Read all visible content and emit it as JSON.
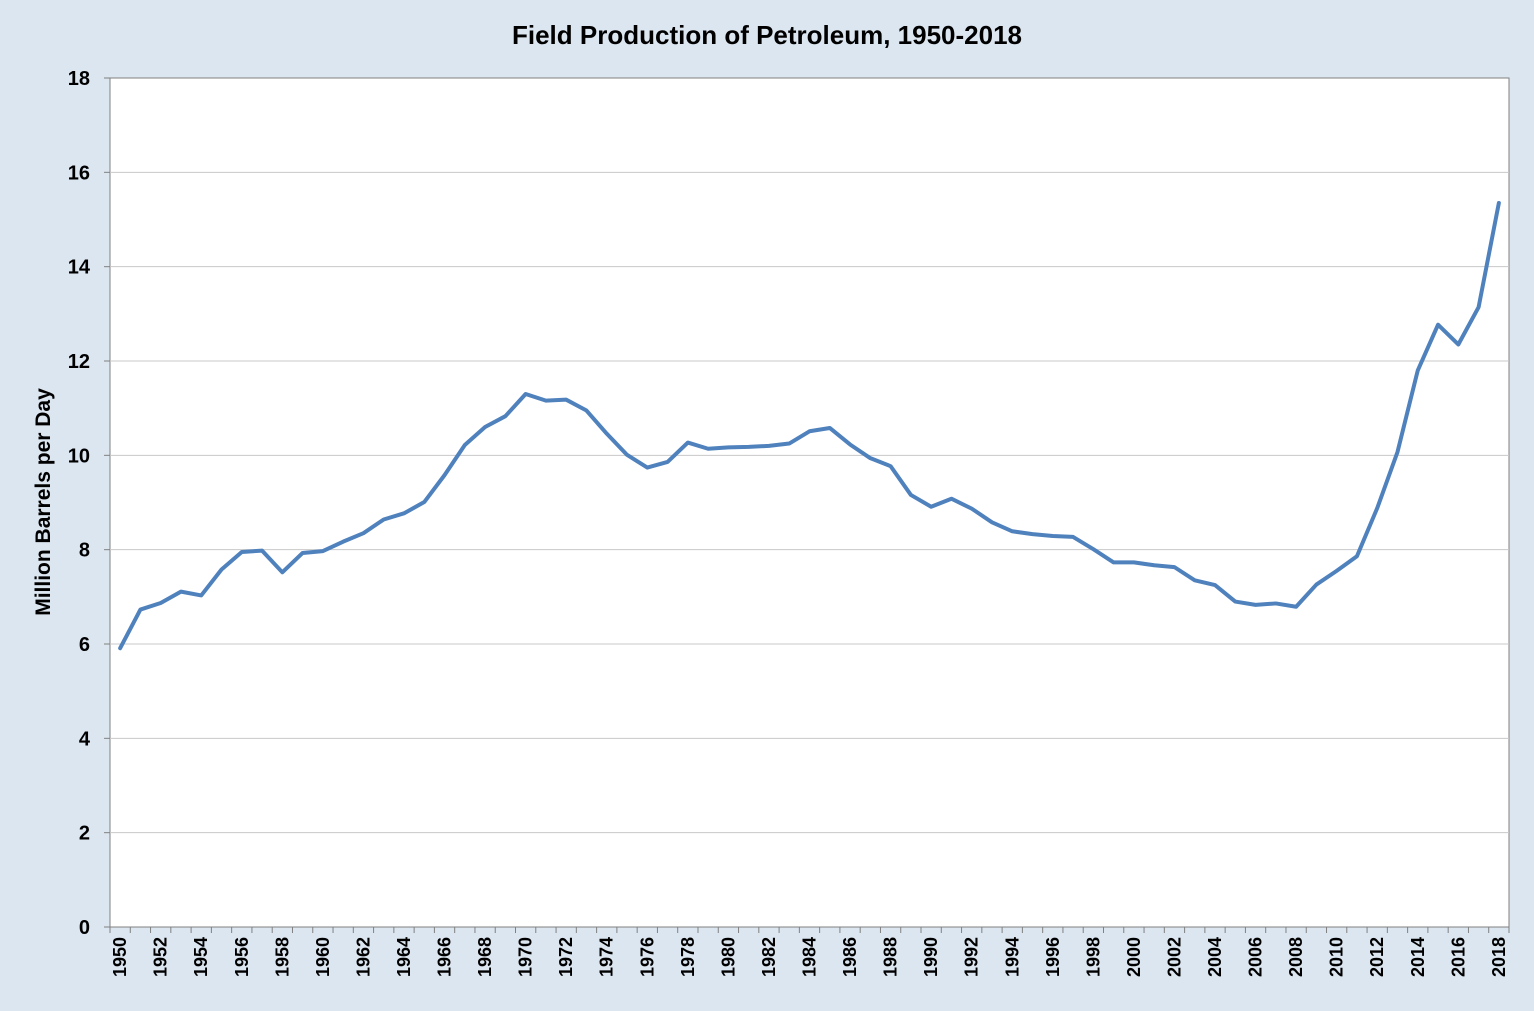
{
  "chart_data": {
    "type": "line",
    "title": "Field Production of Petroleum, 1950-2018",
    "xlabel": "",
    "ylabel": "Million Barrels per Day",
    "xlim": [
      1950,
      2018
    ],
    "ylim": [
      0,
      18
    ],
    "yticks": [
      0,
      2,
      4,
      6,
      8,
      10,
      12,
      14,
      16,
      18
    ],
    "xtick_labels": [
      "1950",
      "1952",
      "1954",
      "1956",
      "1958",
      "1960",
      "1962",
      "1964",
      "1966",
      "1968",
      "1970",
      "1972",
      "1974",
      "1976",
      "1978",
      "1980",
      "1982",
      "1984",
      "1986",
      "1988",
      "1990",
      "1992",
      "1994",
      "1996",
      "1998",
      "2000",
      "2002",
      "2004",
      "2006",
      "2008",
      "2010",
      "2012",
      "2014",
      "2016",
      "2018"
    ],
    "grid": true,
    "legend": "none",
    "colors": {
      "background": "#dce6f1",
      "plot_area": "#ffffff",
      "line": "#4f81bd",
      "grid": "#c8c8c8"
    },
    "x": [
      1950,
      1951,
      1952,
      1953,
      1954,
      1955,
      1956,
      1957,
      1958,
      1959,
      1960,
      1961,
      1962,
      1963,
      1964,
      1965,
      1966,
      1967,
      1968,
      1969,
      1970,
      1971,
      1972,
      1973,
      1974,
      1975,
      1976,
      1977,
      1978,
      1979,
      1980,
      1981,
      1982,
      1983,
      1984,
      1985,
      1986,
      1987,
      1988,
      1989,
      1990,
      1991,
      1992,
      1993,
      1994,
      1995,
      1996,
      1997,
      1998,
      1999,
      2000,
      2001,
      2002,
      2003,
      2004,
      2005,
      2006,
      2007,
      2008,
      2009,
      2010,
      2011,
      2012,
      2013,
      2014,
      2015,
      2016,
      2017,
      2018
    ],
    "series": [
      {
        "values": [
          5.91,
          6.73,
          6.87,
          7.11,
          7.03,
          7.58,
          7.95,
          7.98,
          7.52,
          7.93,
          7.97,
          8.17,
          8.35,
          8.64,
          8.77,
          9.01,
          9.58,
          10.22,
          10.6,
          10.83,
          11.3,
          11.16,
          11.18,
          10.95,
          10.46,
          10.01,
          9.74,
          9.86,
          10.27,
          10.14,
          10.17,
          10.18,
          10.2,
          10.25,
          10.51,
          10.58,
          10.23,
          9.94,
          9.77,
          9.16,
          8.91,
          9.08,
          8.87,
          8.58,
          8.39,
          8.33,
          8.29,
          8.27,
          8.01,
          7.73,
          7.73,
          7.67,
          7.63,
          7.35,
          7.25,
          6.9,
          6.83,
          6.86,
          6.79,
          7.26,
          7.55,
          7.86,
          8.88,
          10.07,
          11.8,
          12.77,
          12.35,
          13.14,
          15.35
        ]
      }
    ]
  }
}
